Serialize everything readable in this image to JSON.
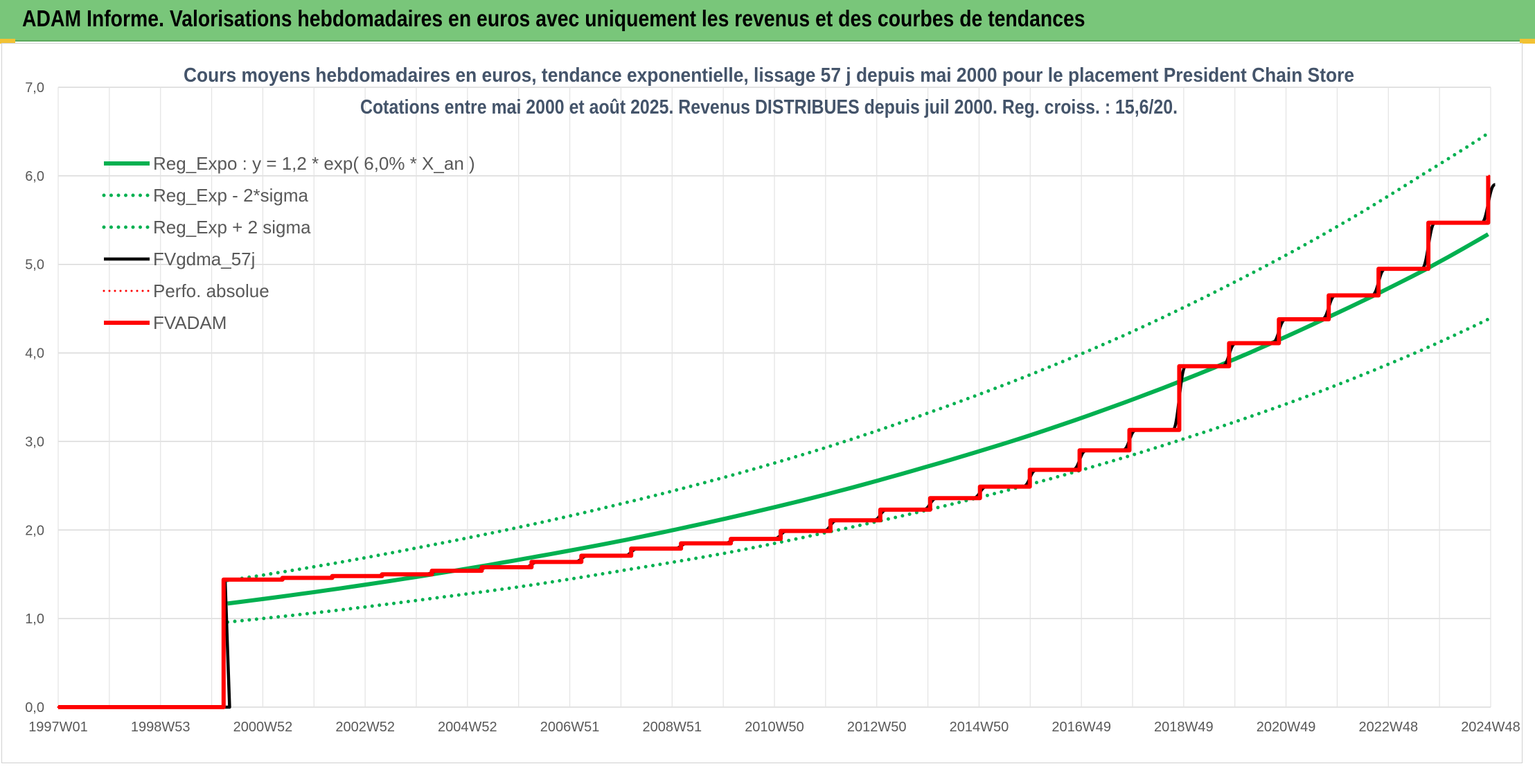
{
  "header": {
    "title": "ADAM Informe. Valorisations hebdomadaires en euros avec uniquement les revenus et des courbes de tendances"
  },
  "colors": {
    "banner": "#79c67a",
    "regression": "#00b050",
    "smoothed": "#000000",
    "adam": "#ff0000"
  },
  "chart_data": {
    "type": "line",
    "title": "Cours moyens hebdomadaires en euros, tendance exponentielle, lissage 57 j depuis mai 2000 pour le placement President Chain Store",
    "subtitle": "Cotations entre mai 2000 et août 2025. Revenus DISTRIBUES depuis juil 2000. Reg. croiss. : 15,6/20.",
    "xlabel": "",
    "ylabel": "",
    "x_ticks": [
      "1997W01",
      "1998W53",
      "2000W52",
      "2002W52",
      "2004W52",
      "2006W51",
      "2008W51",
      "2010W50",
      "2012W50",
      "2014W50",
      "2016W49",
      "2018W49",
      "2020W49",
      "2022W48",
      "2024W48"
    ],
    "y_ticks": [
      "0,0",
      "1,0",
      "2,0",
      "3,0",
      "4,0",
      "5,0",
      "6,0",
      "7,0"
    ],
    "xlim": [
      1997.0,
      2025.75
    ],
    "ylim": [
      0,
      7
    ],
    "grid": true,
    "legend_position": "top-left",
    "series": [
      {
        "name": "Reg_Expo : y = 1,2 * exp( 6,0% *  X_an )",
        "style": "solid",
        "x": [
          2000.4,
          2002.4,
          2004.4,
          2006.4,
          2008.4,
          2010.4,
          2012.4,
          2014.4,
          2016.4,
          2018.4,
          2020.4,
          2022.4,
          2024.4,
          2025.7
        ],
        "values": [
          1.17,
          1.32,
          1.49,
          1.68,
          1.89,
          2.13,
          2.4,
          2.71,
          3.05,
          3.44,
          3.88,
          4.38,
          4.93,
          5.34
        ]
      },
      {
        "name": "Reg_Exp - 2*sigma",
        "style": "dotted",
        "x": [
          2000.4,
          2002.4,
          2004.4,
          2006.4,
          2008.4,
          2010.4,
          2012.4,
          2014.4,
          2016.4,
          2018.4,
          2020.4,
          2022.4,
          2024.4,
          2025.7
        ],
        "values": [
          0.96,
          1.08,
          1.22,
          1.37,
          1.55,
          1.74,
          1.97,
          2.22,
          2.5,
          2.82,
          3.18,
          3.58,
          4.04,
          4.38
        ]
      },
      {
        "name": "Reg_Exp + 2 sigma",
        "style": "dotted",
        "x": [
          2000.4,
          2002.4,
          2004.4,
          2006.4,
          2008.4,
          2010.4,
          2012.4,
          2014.4,
          2016.4,
          2018.4,
          2020.4,
          2022.4,
          2024.4,
          2025.7
        ],
        "values": [
          1.43,
          1.61,
          1.82,
          2.05,
          2.31,
          2.6,
          2.93,
          3.31,
          3.73,
          4.2,
          4.74,
          5.34,
          6.02,
          6.48
        ]
      },
      {
        "name": "FVgdma_57j",
        "style": "solid",
        "x": [
          1997.0,
          2000.3,
          2000.35,
          2001.5,
          2002.5,
          2003.5,
          2004.5,
          2005.5,
          2006.5,
          2007.5,
          2008.5,
          2009.5,
          2010.5,
          2011.5,
          2012.5,
          2013.5,
          2014.5,
          2015.5,
          2016.5,
          2017.5,
          2018.5,
          2019.5,
          2020.5,
          2021.5,
          2022.5,
          2023.5,
          2024.5,
          2025.7
        ],
        "values": [
          0.0,
          0.0,
          1.44,
          1.46,
          1.48,
          1.5,
          1.54,
          1.58,
          1.64,
          1.71,
          1.79,
          1.85,
          1.9,
          1.99,
          2.11,
          2.23,
          2.36,
          2.49,
          2.68,
          2.9,
          3.13,
          3.85,
          4.11,
          4.38,
          4.65,
          4.95,
          5.47,
          5.9
        ]
      },
      {
        "name": "Perfo. absolue",
        "style": "dotted",
        "x": [
          1997.0,
          2000.3,
          2000.32,
          2001.5,
          2002.5,
          2003.5,
          2004.5,
          2005.5,
          2006.5,
          2007.5,
          2008.5,
          2009.5,
          2010.5,
          2011.5,
          2012.5,
          2013.5,
          2014.5,
          2015.5,
          2016.5,
          2017.5,
          2018.5,
          2019.5,
          2020.5,
          2021.5,
          2022.5,
          2023.5,
          2024.5,
          2025.7
        ],
        "values": [
          0.0,
          0.0,
          1.44,
          1.46,
          1.48,
          1.5,
          1.54,
          1.58,
          1.64,
          1.71,
          1.79,
          1.85,
          1.9,
          1.99,
          2.11,
          2.23,
          2.36,
          2.49,
          2.68,
          2.9,
          3.13,
          3.85,
          4.11,
          4.38,
          4.65,
          4.95,
          5.47,
          6.0
        ]
      },
      {
        "name": "FVADAM",
        "style": "step",
        "x": [
          1997.0,
          2000.3,
          2000.32,
          2001.5,
          2002.5,
          2003.5,
          2004.5,
          2005.5,
          2006.5,
          2007.5,
          2008.5,
          2009.5,
          2010.5,
          2011.5,
          2012.5,
          2013.5,
          2014.5,
          2015.5,
          2016.5,
          2017.5,
          2018.5,
          2019.5,
          2020.5,
          2021.5,
          2022.5,
          2023.5,
          2024.5,
          2025.7
        ],
        "values": [
          0.0,
          0.0,
          1.44,
          1.46,
          1.48,
          1.5,
          1.54,
          1.58,
          1.64,
          1.71,
          1.79,
          1.85,
          1.9,
          1.99,
          2.11,
          2.23,
          2.36,
          2.49,
          2.68,
          2.9,
          3.13,
          3.85,
          4.11,
          4.38,
          4.65,
          4.95,
          5.47,
          6.0
        ]
      }
    ]
  }
}
